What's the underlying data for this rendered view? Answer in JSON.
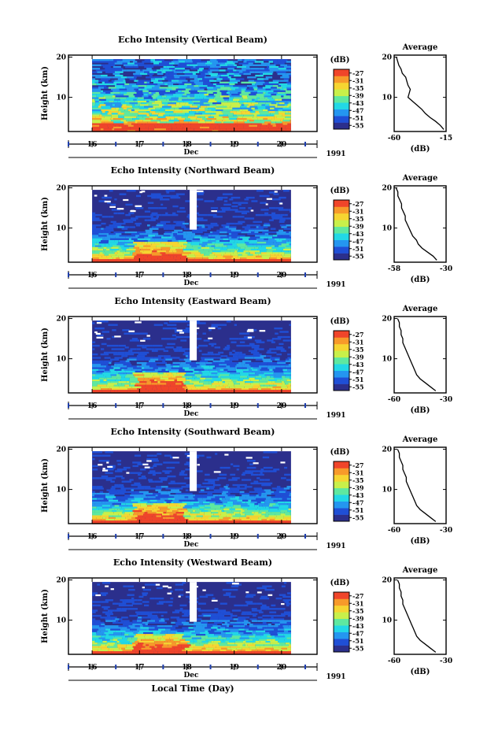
{
  "chart_data": {
    "type": "heatmap",
    "xlabel": "Local Time (Day)",
    "x_month": "Dec",
    "x_year": "1991",
    "x_ticks": [
      "16",
      "17",
      "18",
      "19",
      "20"
    ],
    "xlim": [
      15.5,
      20.75
    ],
    "data_range": [
      16.0,
      20.2
    ],
    "ylabel": "Height (km)",
    "y_ticks": [
      "10",
      "20"
    ],
    "ylim": [
      1.5,
      20.5
    ],
    "unit_label": "(dB)",
    "colorbar_ticks": [
      "-27",
      "-31",
      "-35",
      "-39",
      "-43",
      "-47",
      "-51",
      "-55"
    ],
    "colorbar_range": [
      -57,
      -25
    ],
    "average_title": "Average",
    "average_xlabel": "(dB)",
    "colors": [
      "#2b2f8c",
      "#1f4fd6",
      "#2496f0",
      "#22d8e6",
      "#5ee8a0",
      "#c8f04a",
      "#f6d531",
      "#f79a2a",
      "#f0452a"
    ],
    "panels": [
      {
        "title": "Echo Intensity (Vertical Beam)",
        "avg_xticks": [
          "-60",
          "-15"
        ],
        "avg_xlim": [
          -60,
          -15
        ],
        "average_profile": {
          "height_km": [
            20,
            19,
            18,
            17,
            16,
            15,
            14,
            13,
            12,
            11,
            10,
            9,
            8,
            7,
            6,
            5,
            4,
            3,
            2
          ],
          "db": [
            -58,
            -57,
            -56,
            -54,
            -53,
            -50,
            -49,
            -48,
            -46,
            -47,
            -48,
            -44,
            -40,
            -36,
            -33,
            -29,
            -24,
            -20,
            -17
          ]
        }
      },
      {
        "title": "Echo Intensity (Northward Beam)",
        "avg_xticks": [
          "-58",
          "-30"
        ],
        "avg_xlim": [
          -58,
          -30
        ],
        "average_profile": {
          "height_km": [
            20,
            19,
            18,
            17,
            16,
            15,
            14,
            13,
            12,
            11,
            10,
            9,
            8,
            7,
            6,
            5,
            4,
            3,
            2
          ],
          "db": [
            -57,
            -56,
            -56,
            -55,
            -54,
            -54,
            -53,
            -52,
            -52,
            -51,
            -50,
            -49,
            -48,
            -46,
            -45,
            -43,
            -40,
            -37,
            -35
          ]
        }
      },
      {
        "title": "Echo Intensity (Eastward Beam)",
        "avg_xticks": [
          "-60",
          "-30"
        ],
        "avg_xlim": [
          -60,
          -30
        ],
        "average_profile": {
          "height_km": [
            20,
            19,
            18,
            17,
            16,
            15,
            14,
            13,
            12,
            11,
            10,
            9,
            8,
            7,
            6,
            5,
            4,
            3,
            2
          ],
          "db": [
            -58,
            -57,
            -57,
            -56,
            -56,
            -55,
            -55,
            -54,
            -53,
            -52,
            -51,
            -50,
            -49,
            -48,
            -47,
            -45,
            -42,
            -39,
            -36
          ]
        }
      },
      {
        "title": "Echo Intensity (Southward Beam)",
        "avg_xticks": [
          "-60",
          "-30"
        ],
        "avg_xlim": [
          -60,
          -30
        ],
        "average_profile": {
          "height_km": [
            20,
            19,
            18,
            17,
            16,
            15,
            14,
            13,
            12,
            11,
            10,
            9,
            8,
            7,
            6,
            5,
            4,
            3,
            2
          ],
          "db": [
            -58,
            -57,
            -57,
            -56,
            -55,
            -55,
            -54,
            -53,
            -53,
            -52,
            -51,
            -50,
            -49,
            -48,
            -47,
            -45,
            -42,
            -39,
            -36
          ]
        }
      },
      {
        "title": "Echo Intensity (Westward Beam)",
        "avg_xticks": [
          "-60",
          "-30"
        ],
        "avg_xlim": [
          -60,
          -30
        ],
        "average_profile": {
          "height_km": [
            20,
            19,
            18,
            17,
            16,
            15,
            14,
            13,
            12,
            11,
            10,
            9,
            8,
            7,
            6,
            5,
            4,
            3,
            2
          ],
          "db": [
            -58,
            -57,
            -57,
            -56,
            -56,
            -55,
            -55,
            -54,
            -53,
            -52,
            -51,
            -50,
            -49,
            -48,
            -47,
            -45,
            -42,
            -39,
            -36
          ]
        }
      }
    ]
  }
}
